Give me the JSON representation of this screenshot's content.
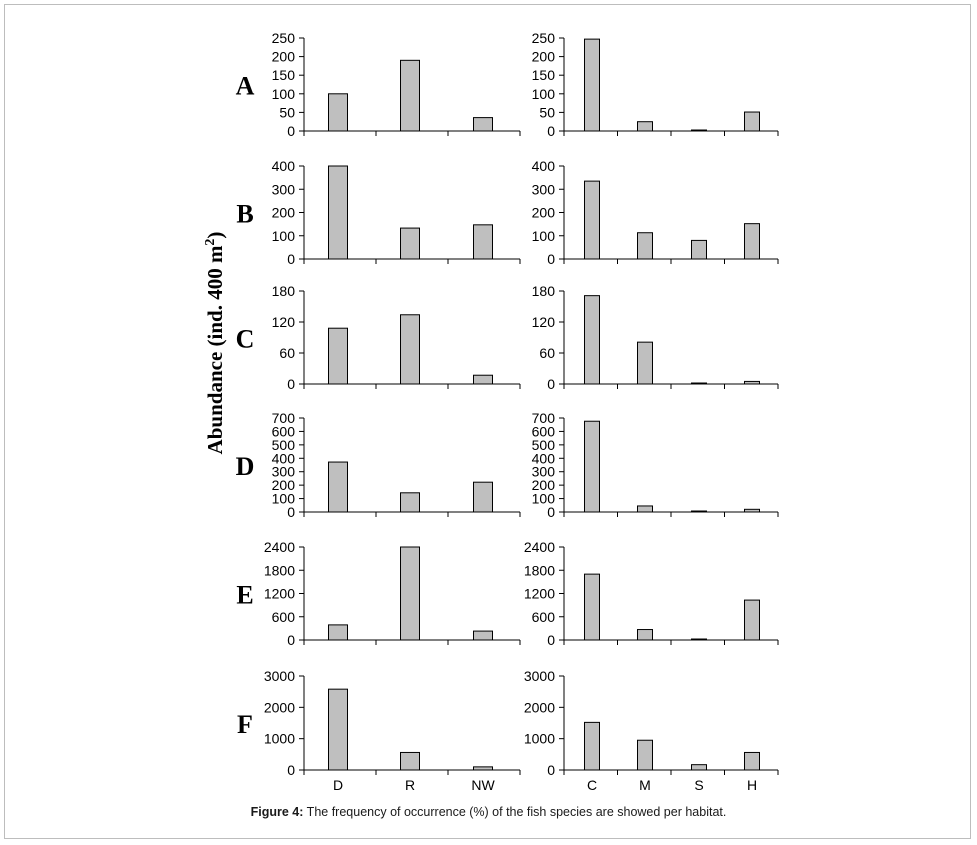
{
  "figure": {
    "y_axis_title": "Abundance (ind. 400 m",
    "y_axis_title_sup": "2",
    "y_axis_title_close": ")",
    "caption_label": "Figure 4:",
    "caption_text": " The frequency of occurrence (%) of the fish species are showed per habitat."
  },
  "colors": {
    "bar_fill": "#bfbfbf",
    "bar_stroke": "#000000",
    "axis": "#000000"
  },
  "chart_data": [
    {
      "type": "bar",
      "row_label": "A",
      "categories": [
        "D",
        "R",
        "NW"
      ],
      "values": [
        100,
        190,
        36
      ],
      "ylim": [
        0,
        250
      ],
      "yticks": [
        0,
        50,
        100,
        150,
        200,
        250
      ],
      "show_xlabels": false
    },
    {
      "type": "bar",
      "row_label": "",
      "categories": [
        "C",
        "M",
        "S",
        "H"
      ],
      "values": [
        247,
        25,
        2,
        51
      ],
      "ylim": [
        0,
        250
      ],
      "yticks": [
        0,
        50,
        100,
        150,
        200,
        250
      ],
      "show_xlabels": false
    },
    {
      "type": "bar",
      "row_label": "B",
      "categories": [
        "D",
        "R",
        "NW"
      ],
      "values": [
        400,
        133,
        147
      ],
      "ylim": [
        0,
        400
      ],
      "yticks": [
        0,
        100,
        200,
        300,
        400
      ],
      "show_xlabels": false
    },
    {
      "type": "bar",
      "row_label": "",
      "categories": [
        "C",
        "M",
        "S",
        "H"
      ],
      "values": [
        335,
        113,
        80,
        152
      ],
      "ylim": [
        0,
        400
      ],
      "yticks": [
        0,
        100,
        200,
        300,
        400
      ],
      "show_xlabels": false
    },
    {
      "type": "bar",
      "row_label": "C",
      "categories": [
        "D",
        "R",
        "NW"
      ],
      "values": [
        108,
        134,
        17
      ],
      "ylim": [
        0,
        180
      ],
      "yticks": [
        0,
        60,
        120,
        180
      ],
      "show_xlabels": false
    },
    {
      "type": "bar",
      "row_label": "",
      "categories": [
        "C",
        "M",
        "S",
        "H"
      ],
      "values": [
        171,
        81,
        1,
        5
      ],
      "ylim": [
        0,
        180
      ],
      "yticks": [
        0,
        60,
        120,
        180
      ],
      "show_xlabels": false
    },
    {
      "type": "bar",
      "row_label": "D",
      "categories": [
        "D",
        "R",
        "NW"
      ],
      "values": [
        372,
        143,
        222
      ],
      "ylim": [
        0,
        700
      ],
      "yticks": [
        0,
        100,
        200,
        300,
        400,
        500,
        600,
        700
      ],
      "show_xlabels": false
    },
    {
      "type": "bar",
      "row_label": "",
      "categories": [
        "C",
        "M",
        "S",
        "H"
      ],
      "values": [
        676,
        45,
        0,
        20
      ],
      "ylim": [
        0,
        700
      ],
      "yticks": [
        0,
        100,
        200,
        300,
        400,
        500,
        600,
        700
      ],
      "show_xlabels": false
    },
    {
      "type": "bar",
      "row_label": "E",
      "categories": [
        "D",
        "R",
        "NW"
      ],
      "values": [
        390,
        2400,
        230
      ],
      "ylim": [
        0,
        2400
      ],
      "yticks": [
        0,
        600,
        1200,
        1800,
        2400
      ],
      "show_xlabels": false
    },
    {
      "type": "bar",
      "row_label": "",
      "categories": [
        "C",
        "M",
        "S",
        "H"
      ],
      "values": [
        1700,
        270,
        20,
        1030
      ],
      "ylim": [
        0,
        2400
      ],
      "yticks": [
        0,
        600,
        1200,
        1800,
        2400
      ],
      "show_xlabels": false
    },
    {
      "type": "bar",
      "row_label": "F",
      "categories": [
        "D",
        "R",
        "NW"
      ],
      "values": [
        2580,
        560,
        100
      ],
      "ylim": [
        0,
        3000
      ],
      "yticks": [
        0,
        1000,
        2000,
        3000
      ],
      "show_xlabels": true
    },
    {
      "type": "bar",
      "row_label": "",
      "categories": [
        "C",
        "M",
        "S",
        "H"
      ],
      "values": [
        1520,
        950,
        170,
        560
      ],
      "ylim": [
        0,
        3000
      ],
      "yticks": [
        0,
        1000,
        2000,
        3000
      ],
      "show_xlabels": true
    }
  ]
}
